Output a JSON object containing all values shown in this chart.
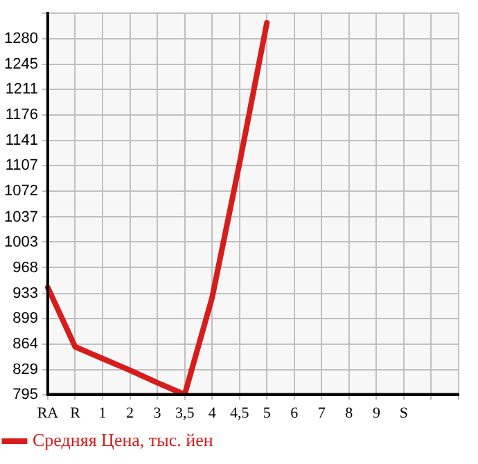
{
  "chart_data": {
    "type": "line",
    "categories": [
      "RA",
      "R",
      "1",
      "2",
      "3",
      "3,5",
      "4",
      "4,5",
      "5",
      "6",
      "7",
      "8",
      "9",
      "S",
      null,
      null
    ],
    "series": [
      {
        "name": "Средняя Цена, тыс. йен",
        "color": "#d71c1c",
        "values": [
          941,
          860,
          844,
          828,
          811,
          795,
          927,
          1110,
          1302,
          null,
          null,
          null,
          null,
          null,
          null,
          null
        ]
      }
    ],
    "ylim": [
      795,
      1315
    ],
    "yticks": [
      795,
      829,
      864,
      899,
      933,
      968,
      1003,
      1037,
      1072,
      1107,
      1141,
      1176,
      1211,
      1245,
      1280,
      {
        "value": 1315,
        "label": null
      }
    ],
    "grid": true,
    "legend": "bottom left",
    "marker": "none",
    "line_style": "solid"
  }
}
